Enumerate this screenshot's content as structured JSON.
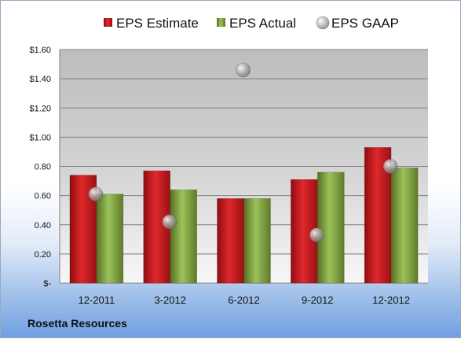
{
  "company": "Rosetta Resources",
  "chart_data": {
    "type": "bar",
    "categories": [
      "12-2011",
      "3-2012",
      "6-2012",
      "9-2012",
      "12-2012"
    ],
    "series": [
      {
        "name": "EPS Estimate",
        "kind": "bar",
        "color": "#c0161c",
        "values": [
          0.74,
          0.77,
          0.58,
          0.71,
          0.93
        ]
      },
      {
        "name": "EPS Actual",
        "kind": "bar",
        "color": "#76993a",
        "values": [
          0.61,
          0.64,
          0.58,
          0.76,
          0.79
        ]
      },
      {
        "name": "EPS GAAP",
        "kind": "scatter",
        "color": "#a9a9a9",
        "values": [
          0.61,
          0.42,
          1.46,
          0.33,
          0.8
        ]
      }
    ],
    "ylim": [
      0,
      1.6
    ],
    "yticks": [
      0,
      0.2,
      0.4,
      0.6,
      0.8,
      1.0,
      1.2,
      1.4,
      1.6
    ],
    "ytick_labels": [
      "$-",
      "0.20",
      "0.40",
      "0.60",
      "0.80",
      "$1.00",
      "$1.20",
      "$1.40",
      "$1.60"
    ],
    "grid": true,
    "legend": "top"
  }
}
